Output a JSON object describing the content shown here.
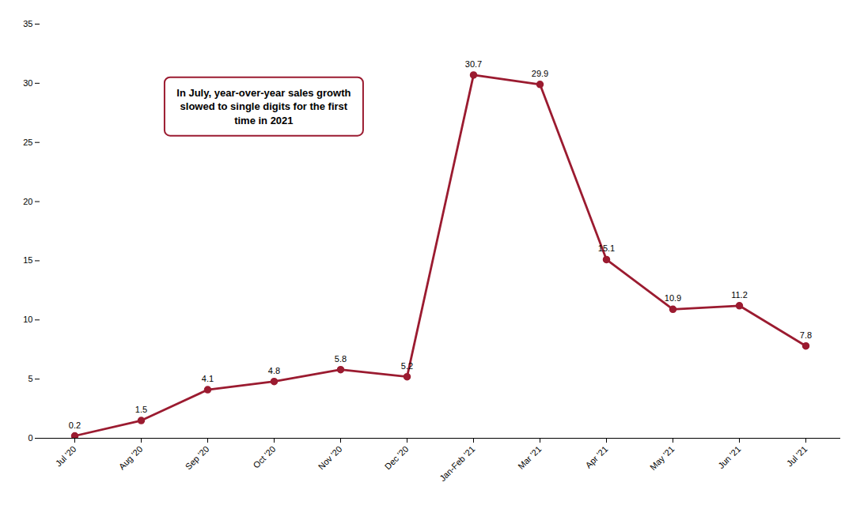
{
  "chart_data": {
    "type": "line",
    "categories": [
      "Jul '20",
      "Aug '20",
      "Sep '20",
      "Oct '20",
      "Nov '20",
      "Dec '20",
      "Jan-Feb '21",
      "Mar '21",
      "Apr '21",
      "May '21",
      "Jun '21",
      "Jul '21"
    ],
    "values": [
      0.2,
      1.5,
      4.1,
      4.8,
      5.8,
      5.2,
      30.7,
      29.9,
      15.1,
      10.9,
      11.2,
      7.8
    ],
    "color": "#9B1B30",
    "marker": "circle",
    "ylim": [
      0,
      35
    ],
    "yticks": [
      0,
      5,
      10,
      15,
      20,
      25,
      30,
      35
    ],
    "grid": false,
    "data_labels": true,
    "annotation": "In July, year-over-year sales growth\nslowed to single digits for the first\ntime in 2021",
    "annotation_color": "#9B1B30"
  }
}
